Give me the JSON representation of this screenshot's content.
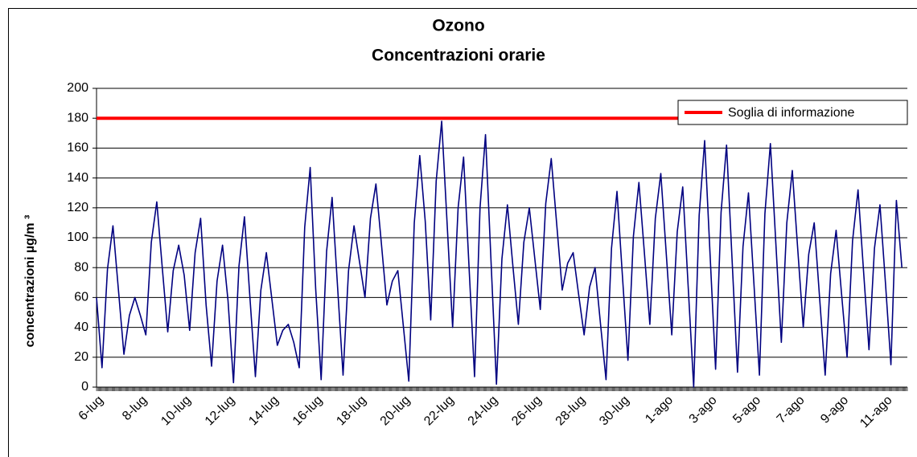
{
  "chart_data": {
    "type": "line",
    "title": "Ozono",
    "subtitle": "Concentrazioni orarie",
    "y_label": "concentrazioni µg/m ³",
    "categories": [
      "6-lug",
      null,
      null,
      null,
      null,
      null,
      null,
      null,
      "8-lug",
      null,
      null,
      null,
      null,
      null,
      null,
      null,
      "10-lug",
      null,
      null,
      null,
      null,
      null,
      null,
      null,
      "12-lug",
      null,
      null,
      null,
      null,
      null,
      null,
      null,
      "14-lug",
      null,
      null,
      null,
      null,
      null,
      null,
      null,
      "16-lug",
      null,
      null,
      null,
      null,
      null,
      null,
      null,
      "18-lug",
      null,
      null,
      null,
      null,
      null,
      null,
      null,
      "20-lug",
      null,
      null,
      null,
      null,
      null,
      null,
      null,
      "22-lug",
      null,
      null,
      null,
      null,
      null,
      null,
      null,
      "24-lug",
      null,
      null,
      null,
      null,
      null,
      null,
      null,
      "26-lug",
      null,
      null,
      null,
      null,
      null,
      null,
      null,
      "28-lug",
      null,
      null,
      null,
      null,
      null,
      null,
      null,
      "30-lug",
      null,
      null,
      null,
      null,
      null,
      null,
      null,
      "1-ago",
      null,
      null,
      null,
      null,
      null,
      null,
      null,
      "3-ago",
      null,
      null,
      null,
      null,
      null,
      null,
      null,
      "5-ago",
      null,
      null,
      null,
      null,
      null,
      null,
      null,
      "7-ago",
      null,
      null,
      null,
      null,
      null,
      null,
      null,
      "9-ago",
      null,
      null,
      null,
      null,
      null,
      null,
      null,
      "11-ago",
      null,
      null,
      null
    ],
    "series": [
      {
        "color": "#000080",
        "values": [
          60,
          13,
          79,
          108,
          65,
          22,
          48,
          60,
          48,
          35,
          97,
          124,
          80,
          37,
          78,
          95,
          75,
          38,
          90,
          113,
          55,
          14,
          71,
          95,
          58,
          3,
          81,
          114,
          60,
          7,
          65,
          90,
          59,
          28,
          38,
          42,
          30,
          13,
          107,
          147,
          66,
          5,
          91,
          127,
          67,
          8,
          78,
          108,
          84,
          60,
          113,
          136,
          96,
          55,
          71,
          78,
          41,
          4,
          110,
          155,
          111,
          45,
          138,
          178,
          109,
          40,
          120,
          154,
          80,
          7,
          120,
          169,
          85,
          2,
          86,
          122,
          81,
          42,
          97,
          120,
          86,
          52,
          123,
          153,
          109,
          65,
          83,
          90,
          62,
          35,
          67,
          80,
          42,
          5,
          93,
          131,
          74,
          18,
          101,
          137,
          90,
          42,
          113,
          143,
          89,
          35,
          104,
          134,
          67,
          0,
          115,
          165,
          88,
          12,
          117,
          162,
          86,
          10,
          94,
          130,
          69,
          8,
          116,
          163,
          96,
          30,
          110,
          145,
          92,
          40,
          89,
          110,
          59,
          8,
          76,
          105,
          62,
          20,
          98,
          132,
          78,
          25,
          93,
          122,
          70,
          15,
          125,
          80
        ]
      }
    ],
    "threshold": {
      "name": "Soglia di informazione",
      "value": 180,
      "color": "#ff0000"
    },
    "ylim": [
      0,
      200
    ],
    "yticks": [
      0,
      20,
      40,
      60,
      80,
      100,
      120,
      140,
      160,
      180,
      200
    ],
    "grid": true,
    "legend": "top-right"
  }
}
